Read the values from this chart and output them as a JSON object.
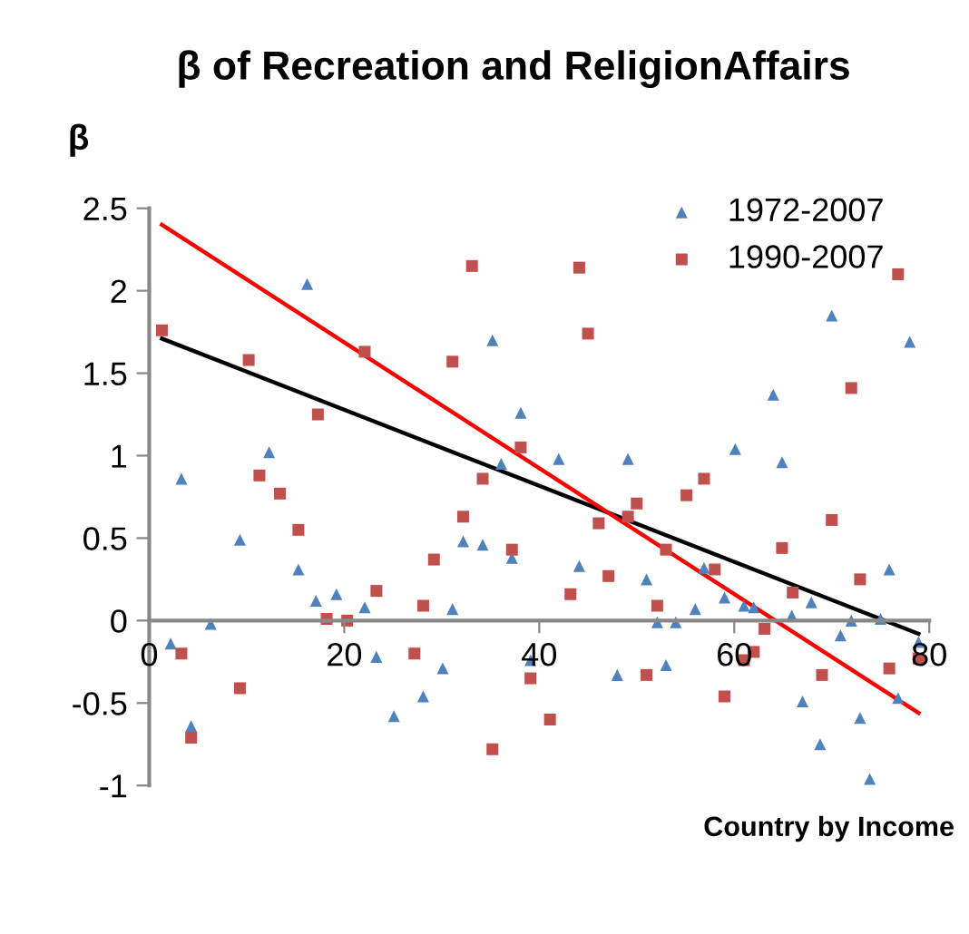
{
  "chart_data": {
    "type": "scatter",
    "title": "β of Recreation and ReligionAffairs",
    "ylabel": "β",
    "xlabel": "Country by Income",
    "xlim": [
      0,
      80
    ],
    "xticks": [
      0,
      20,
      40,
      60,
      80
    ],
    "ylim": [
      -1,
      2.5
    ],
    "yticks": [
      -1,
      -0.5,
      0,
      0.5,
      1,
      1.5,
      2,
      2.5
    ],
    "grid": false,
    "legend": "top right",
    "series": [
      {
        "name": "1972-2007",
        "marker": "triangle",
        "color": "#4f81bd",
        "x": [
          2.2,
          3.3,
          4.3,
          6.3,
          9.3,
          12.3,
          15.3,
          16.2,
          17.1,
          19.2,
          22.1,
          23.3,
          25.1,
          28.1,
          30.1,
          31.1,
          32.2,
          34.2,
          35.2,
          36.1,
          37.2,
          38.1,
          39.1,
          42.0,
          44.1,
          48.0,
          49.1,
          51.0,
          52.1,
          53.0,
          54.0,
          56.0,
          56.9,
          59.0,
          60.1,
          61.0,
          62.0,
          64.0,
          64.9,
          65.9,
          67.0,
          67.9,
          68.8,
          70.0,
          70.9,
          72.0,
          72.9,
          73.9,
          75.0,
          75.9,
          76.8,
          78.0,
          78.9
        ],
        "values": [
          -0.14,
          0.86,
          -0.64,
          -0.02,
          0.49,
          1.02,
          0.31,
          2.04,
          0.12,
          0.16,
          0.08,
          -0.22,
          -0.58,
          -0.46,
          -0.29,
          0.07,
          0.48,
          0.46,
          1.7,
          0.95,
          0.38,
          1.26,
          -0.24,
          0.98,
          0.33,
          -0.33,
          0.98,
          0.25,
          -0.01,
          -0.27,
          -0.01,
          0.07,
          0.32,
          0.14,
          1.04,
          0.09,
          0.08,
          1.37,
          0.96,
          0.03,
          -0.49,
          0.11,
          -0.75,
          1.85,
          -0.09,
          0.0,
          -0.59,
          -0.96,
          0.01,
          0.31,
          -0.47,
          1.69,
          -0.13
        ]
      },
      {
        "name": "1990-2007",
        "marker": "square",
        "color": "#c0504d",
        "x": [
          1.3,
          3.3,
          4.3,
          9.3,
          10.2,
          11.3,
          13.4,
          15.3,
          17.3,
          18.2,
          20.3,
          22.1,
          23.3,
          27.2,
          28.1,
          29.2,
          31.1,
          32.2,
          33.1,
          34.2,
          35.2,
          37.2,
          38.1,
          39.1,
          41.1,
          43.2,
          44.1,
          45.0,
          46.1,
          47.1,
          49.1,
          50.0,
          51.0,
          52.1,
          53.0,
          55.1,
          56.9,
          58.0,
          59.0,
          61.0,
          62.0,
          63.1,
          64.9,
          66.0,
          69.0,
          70.0,
          72.0,
          72.9,
          75.9,
          76.8,
          78.9
        ],
        "values": [
          1.76,
          -0.2,
          -0.71,
          -0.41,
          1.58,
          0.88,
          0.77,
          0.55,
          1.25,
          0.01,
          0.0,
          1.63,
          0.18,
          -0.2,
          0.09,
          0.37,
          1.57,
          0.63,
          2.15,
          0.86,
          -0.78,
          0.43,
          1.05,
          -0.35,
          -0.6,
          0.16,
          2.14,
          1.74,
          0.59,
          0.27,
          0.63,
          0.71,
          -0.33,
          0.09,
          0.43,
          0.76,
          0.86,
          0.31,
          -0.46,
          -0.24,
          -0.19,
          -0.05,
          0.44,
          0.17,
          -0.33,
          0.61,
          1.41,
          0.25,
          -0.29,
          2.1,
          -0.23
        ]
      },
      {
        "type": "line",
        "color": "#000000",
        "x": [
          1.3,
          78.9
        ],
        "values": [
          1.71,
          -0.08
        ]
      },
      {
        "type": "line",
        "color": "#ff0000",
        "x": [
          1.3,
          78.9
        ],
        "values": [
          2.4,
          -0.56
        ]
      }
    ]
  }
}
